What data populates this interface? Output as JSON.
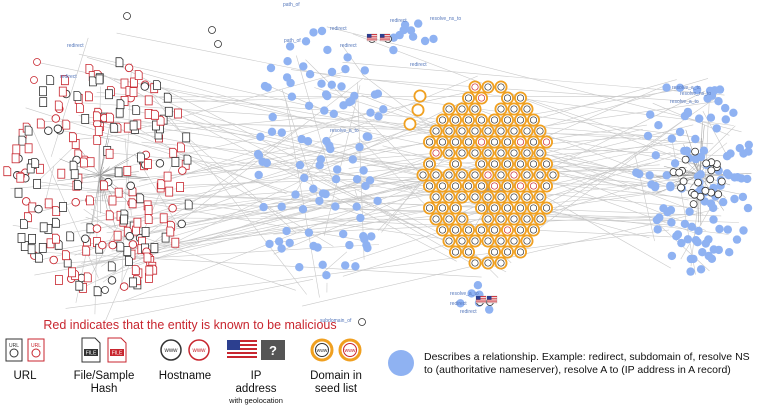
{
  "legend": {
    "warning": "Red indicates that the entity is known to be malicious",
    "url_label": "URL",
    "hash_label": "File/Sample",
    "hash_label_2": "Hash",
    "hostname_label": "Hostname",
    "ip_label": "IP",
    "ip_label_2": "address",
    "ip_sublabel": "with geolocation",
    "domain_label": "Domain in",
    "domain_label_2": "seed list",
    "relationship_text": "Describes a relationship. Example: redirect, subdomain of, resolve  NS to (authoritative nameserver), resolve A to (IP address in A record)",
    "url_icon_text": "URL",
    "file_icon_text": "FILE",
    "www_icon_text": "www",
    "unknown_icon_text": "?"
  },
  "graph": {
    "node_labels": [
      "path_of",
      "path_of",
      "redirect",
      "redirect",
      "redirect",
      "redirect",
      "redirect",
      "redirect",
      "resolve_a_to",
      "resolve_a_to",
      "resolve_ns_to",
      "resolve_ns_to",
      "subdomain_of",
      "redirect",
      "redirect",
      "resolve_a_to",
      "resolve_a_to"
    ]
  },
  "colors": {
    "malicious": "#c8262f",
    "benign": "#333333",
    "relationship": "#8fb2f2",
    "seed_ring": "#f0a020",
    "edge": "#c9c9c9"
  }
}
